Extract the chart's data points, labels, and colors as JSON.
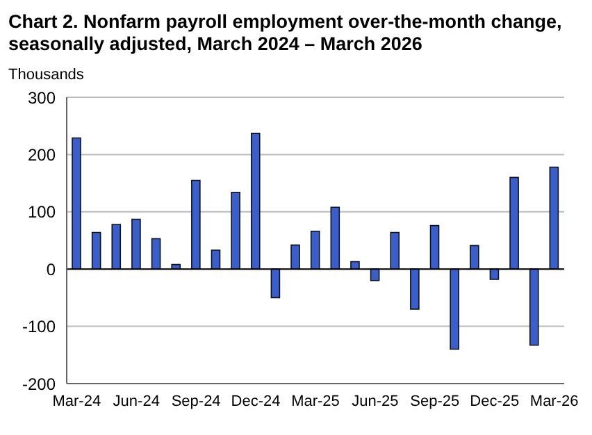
{
  "chart_data": {
    "type": "bar",
    "title": "Chart 2. Nonfarm payroll employment over-the-month change, seasonally adjusted, March 2024 – March 2026",
    "ylabel": "Thousands",
    "categories": [
      "Mar-24",
      null,
      null,
      "Jun-24",
      null,
      null,
      "Sep-24",
      null,
      null,
      "Dec-24",
      null,
      null,
      "Mar-25",
      null,
      null,
      "Jun-25",
      null,
      null,
      "Sep-25",
      null,
      null,
      "Dec-25",
      null,
      null,
      "Mar-26"
    ],
    "values": [
      229,
      64,
      78,
      87,
      53,
      8,
      155,
      33,
      134,
      237,
      -50,
      42,
      66,
      108,
      13,
      -20,
      64,
      -70,
      76,
      -140,
      41,
      -18,
      160,
      -133,
      178
    ],
    "color": "#3a5fcd",
    "ylim": [
      -200,
      300
    ],
    "yticks": [
      -200,
      -100,
      0,
      100,
      200,
      300
    ],
    "grid": "y"
  }
}
